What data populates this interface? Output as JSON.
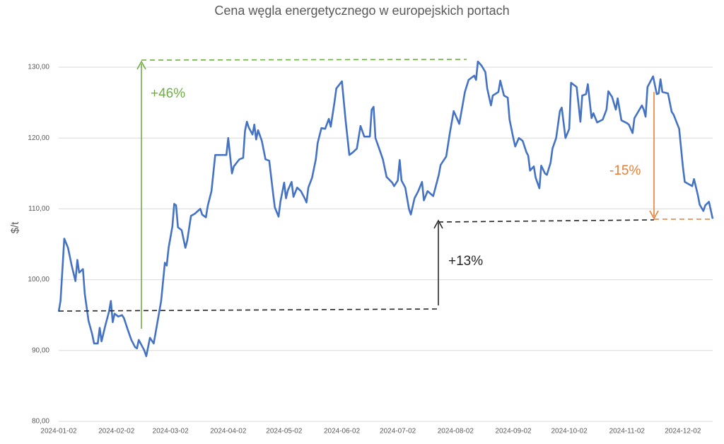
{
  "chart_data": {
    "type": "line",
    "title": "Cena węgla energetycznego w europejskich portach",
    "y_label": "$/t",
    "ylim": [
      80,
      130
    ],
    "yticks": [
      {
        "value": 80,
        "label": "80,00"
      },
      {
        "value": 90,
        "label": "90,00"
      },
      {
        "value": 100,
        "label": "100,00"
      },
      {
        "value": 110,
        "label": "110,00"
      },
      {
        "value": 120,
        "label": "120,00"
      },
      {
        "value": 130,
        "label": "130,00"
      }
    ],
    "xlim": [
      "2024-01-02",
      "2024-12-18"
    ],
    "xticks": [
      "2024-01-02",
      "2024-02-02",
      "2024-03-02",
      "2024-04-02",
      "2024-05-02",
      "2024-06-02",
      "2024-07-02",
      "2024-08-02",
      "2024-09-02",
      "2024-10-02",
      "2024-11-02",
      "2024-12-02"
    ],
    "grid": true,
    "annotations": [
      {
        "text": "+46%",
        "color": "#70ad47"
      },
      {
        "text": "+13%",
        "color": "#262626"
      },
      {
        "text": "-15%",
        "color": "#ed7d31"
      }
    ],
    "x": [
      "2024-01-02",
      "2024-01-03",
      "2024-01-05",
      "2024-01-07",
      "2024-01-09",
      "2024-01-11",
      "2024-01-12",
      "2024-01-13",
      "2024-01-15",
      "2024-01-16",
      "2024-01-18",
      "2024-01-20",
      "2024-01-21",
      "2024-01-23",
      "2024-01-24",
      "2024-01-25",
      "2024-01-27",
      "2024-01-29",
      "2024-01-30",
      "2024-01-31",
      "2024-02-01",
      "2024-02-03",
      "2024-02-05",
      "2024-02-06",
      "2024-02-08",
      "2024-02-10",
      "2024-02-12",
      "2024-02-13",
      "2024-02-14",
      "2024-02-17",
      "2024-02-18",
      "2024-02-20",
      "2024-02-22",
      "2024-02-24",
      "2024-02-26",
      "2024-02-28",
      "2024-02-29",
      "2024-03-01",
      "2024-03-03",
      "2024-03-04",
      "2024-03-05",
      "2024-03-06",
      "2024-03-08",
      "2024-03-10",
      "2024-03-11",
      "2024-03-13",
      "2024-03-15",
      "2024-03-18",
      "2024-03-19",
      "2024-03-21",
      "2024-03-22",
      "2024-03-24",
      "2024-03-26",
      "2024-03-29",
      "2024-04-01",
      "2024-04-02",
      "2024-04-04",
      "2024-04-05",
      "2024-04-08",
      "2024-04-10",
      "2024-04-11",
      "2024-04-12",
      "2024-04-13",
      "2024-04-15",
      "2024-04-16",
      "2024-04-17",
      "2024-04-18",
      "2024-04-20",
      "2024-04-22",
      "2024-04-24",
      "2024-04-26",
      "2024-04-27",
      "2024-04-29",
      "2024-04-30",
      "2024-05-02",
      "2024-05-03",
      "2024-05-04",
      "2024-05-06",
      "2024-05-07",
      "2024-05-09",
      "2024-05-11",
      "2024-05-13",
      "2024-05-14",
      "2024-05-15",
      "2024-05-17",
      "2024-05-19",
      "2024-05-20",
      "2024-05-22",
      "2024-05-24",
      "2024-05-26",
      "2024-05-27",
      "2024-05-29",
      "2024-05-30",
      "2024-06-02",
      "2024-06-04",
      "2024-06-06",
      "2024-06-08",
      "2024-06-10",
      "2024-06-12",
      "2024-06-14",
      "2024-06-17",
      "2024-06-18",
      "2024-06-19",
      "2024-06-20",
      "2024-06-22",
      "2024-06-24",
      "2024-06-26",
      "2024-06-29",
      "2024-06-30",
      "2024-07-02",
      "2024-07-03",
      "2024-07-04",
      "2024-07-06",
      "2024-07-08",
      "2024-07-09",
      "2024-07-11",
      "2024-07-13",
      "2024-07-15",
      "2024-07-16",
      "2024-07-18",
      "2024-07-21",
      "2024-07-23",
      "2024-07-24",
      "2024-07-25",
      "2024-07-28",
      "2024-07-30",
      "2024-08-01",
      "2024-08-04",
      "2024-08-06",
      "2024-08-07",
      "2024-08-09",
      "2024-08-12",
      "2024-08-13",
      "2024-08-14",
      "2024-08-16",
      "2024-08-18",
      "2024-08-19",
      "2024-08-21",
      "2024-08-22",
      "2024-08-25",
      "2024-08-26",
      "2024-08-28",
      "2024-08-30",
      "2024-08-31",
      "2024-09-02",
      "2024-09-03",
      "2024-09-05",
      "2024-09-07",
      "2024-09-09",
      "2024-09-10",
      "2024-09-11",
      "2024-09-13",
      "2024-09-14",
      "2024-09-16",
      "2024-09-17",
      "2024-09-19",
      "2024-09-20",
      "2024-09-22",
      "2024-09-23",
      "2024-09-25",
      "2024-09-27",
      "2024-09-28",
      "2024-09-30",
      "2024-10-02",
      "2024-10-03",
      "2024-10-06",
      "2024-10-08",
      "2024-10-09",
      "2024-10-11",
      "2024-10-12",
      "2024-10-14",
      "2024-10-15",
      "2024-10-17",
      "2024-10-20",
      "2024-10-22",
      "2024-10-23",
      "2024-10-25",
      "2024-10-27",
      "2024-10-28",
      "2024-10-30",
      "2024-11-02",
      "2024-11-03",
      "2024-11-05",
      "2024-11-06",
      "2024-11-08",
      "2024-11-10",
      "2024-11-11",
      "2024-11-12",
      "2024-11-13",
      "2024-11-16",
      "2024-11-18",
      "2024-11-19",
      "2024-11-20",
      "2024-11-21",
      "2024-11-24",
      "2024-11-26",
      "2024-11-27",
      "2024-11-30",
      "2024-12-02",
      "2024-12-03",
      "2024-12-07",
      "2024-12-08",
      "2024-12-10",
      "2024-12-11",
      "2024-12-13",
      "2024-12-14",
      "2024-12-16",
      "2024-12-18"
    ],
    "series": [
      {
        "name": "Cena",
        "color": "#4472c4",
        "values": [
          95.5,
          97,
          105.8,
          104.5,
          102,
          99.8,
          102.8,
          101,
          101.5,
          98,
          94.2,
          92.3,
          91,
          91,
          93.2,
          91.3,
          93.5,
          95.5,
          97,
          94,
          95.2,
          94.8,
          95,
          94.6,
          93,
          91.5,
          90.5,
          90.3,
          91.5,
          90,
          89.2,
          91.8,
          91,
          94,
          97,
          102.4,
          102,
          104.5,
          107.5,
          110.7,
          110.5,
          107.4,
          107,
          104.5,
          105.5,
          109,
          109.3,
          110,
          109.2,
          108.8,
          110.4,
          112.5,
          117.6,
          117.6,
          117.6,
          120,
          115,
          116,
          117,
          117.2,
          121,
          122.3,
          121.5,
          120.5,
          121.9,
          119.8,
          121.1,
          119.6,
          117,
          116.8,
          112.3,
          110.2,
          108.9,
          111,
          113.7,
          111.5,
          112.6,
          113.8,
          111.7,
          113,
          112.5,
          111.5,
          110.9,
          113,
          114.4,
          117,
          119.3,
          121.4,
          121.3,
          122.7,
          121.6,
          125,
          127,
          128,
          122.5,
          117.6,
          118,
          118.5,
          121.7,
          120.2,
          120.2,
          124,
          124.4,
          120,
          118.5,
          117,
          114.5,
          113.7,
          113.2,
          114,
          116.9,
          114,
          113,
          110,
          109.2,
          111.5,
          112.5,
          113.8,
          111.2,
          112.5,
          111.8,
          113.8,
          114.8,
          116.2,
          117.4,
          120.8,
          123.8,
          122,
          125,
          126.5,
          128.2,
          128.8,
          128.2,
          130.8,
          130.2,
          129.3,
          127,
          124.6,
          126,
          126.5,
          128.1,
          126,
          125.7,
          122.6,
          120,
          118.8,
          120,
          119.6,
          118,
          117.5,
          115.4,
          116,
          114.4,
          112.9,
          116.1,
          115,
          114.8,
          116.5,
          118.5,
          120,
          123.8,
          124.3,
          120,
          121.3,
          127.8,
          127.2,
          122.3,
          126,
          126.2,
          127.6,
          122.8,
          123.5,
          122.2,
          122.6,
          124,
          126.6,
          125.8,
          124,
          125.6,
          122.5,
          122.1,
          121.9,
          120.7,
          122.8,
          123.7,
          124.6,
          124,
          123,
          127.2,
          128.7,
          126.2,
          126.3,
          128.3,
          126.5,
          126.3,
          123.7,
          123.3,
          121.3,
          116,
          113.8,
          113.2,
          114.2,
          112,
          110.6,
          109.7,
          110.5,
          111,
          108.6
        ]
      }
    ]
  }
}
